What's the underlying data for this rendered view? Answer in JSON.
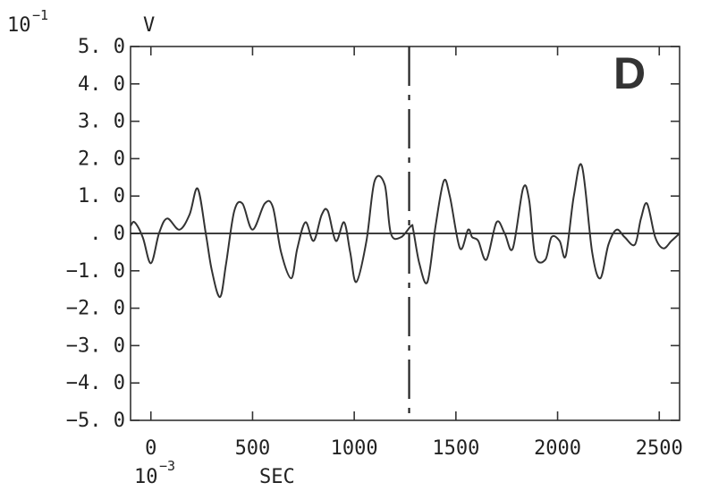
{
  "chart_data": {
    "type": "line",
    "panel_label": "D",
    "y_unit_prefix": "10",
    "y_unit_exp": "−1",
    "y_unit": "V",
    "x_unit_prefix": "10",
    "x_unit_exp": "−3",
    "x_unit": "SEC",
    "xlim": [
      -100,
      2600
    ],
    "ylim": [
      -5.0,
      5.0
    ],
    "x_ticks": [
      0,
      500,
      1000,
      1500,
      2000,
      2500
    ],
    "x_tick_labels": [
      "0",
      "500",
      "1000",
      "1500",
      "2000",
      "2500"
    ],
    "y_ticks": [
      5,
      4,
      3,
      2,
      1,
      0,
      -1,
      -2,
      -3,
      -4,
      -5
    ],
    "y_tick_labels": [
      "5. 0",
      "4. 0",
      "3. 0",
      "2. 0",
      "1. 0",
      ". 0",
      "−1. 0",
      "−2. 0",
      "−3. 0",
      "−4. 0",
      "−5. 0"
    ],
    "zero_line": true,
    "vertical_marker_x": 1270,
    "series": [
      {
        "x": [
          -100,
          -80,
          -40,
          0,
          40,
          80,
          140,
          190,
          230,
          270,
          300,
          340,
          370,
          410,
          450,
          500,
          560,
          600,
          640,
          690,
          720,
          760,
          800,
          840,
          870,
          910,
          950,
          980,
          1010,
          1060,
          1100,
          1150,
          1180,
          1230,
          1280,
          1290,
          1320,
          1360,
          1400,
          1440,
          1470,
          1520,
          1560,
          1580,
          1610,
          1650,
          1700,
          1740,
          1780,
          1830,
          1860,
          1890,
          1940,
          1970,
          2010,
          2040,
          2080,
          2120,
          2170,
          2210,
          2250,
          2290,
          2330,
          2380,
          2410,
          2440,
          2480,
          2520,
          2560,
          2600
        ],
        "y": [
          0.2,
          0.3,
          -0.1,
          -0.8,
          0.0,
          0.4,
          0.1,
          0.5,
          1.2,
          0.0,
          -1.0,
          -1.7,
          -0.8,
          0.6,
          0.8,
          0.1,
          0.8,
          0.7,
          -0.5,
          -1.2,
          -0.4,
          0.3,
          -0.2,
          0.5,
          0.6,
          -0.2,
          0.3,
          -0.5,
          -1.3,
          -0.2,
          1.4,
          1.3,
          0.0,
          -0.1,
          0.2,
          0.1,
          -0.8,
          -1.3,
          0.2,
          1.4,
          1.0,
          -0.4,
          0.1,
          -0.1,
          -0.2,
          -0.7,
          0.3,
          0.0,
          -0.4,
          1.2,
          0.9,
          -0.6,
          -0.7,
          -0.1,
          -0.2,
          -0.6,
          1.0,
          1.8,
          -0.5,
          -1.2,
          -0.3,
          0.1,
          -0.1,
          -0.3,
          0.4,
          0.8,
          -0.1,
          -0.4,
          -0.2,
          0.0
        ]
      }
    ]
  }
}
